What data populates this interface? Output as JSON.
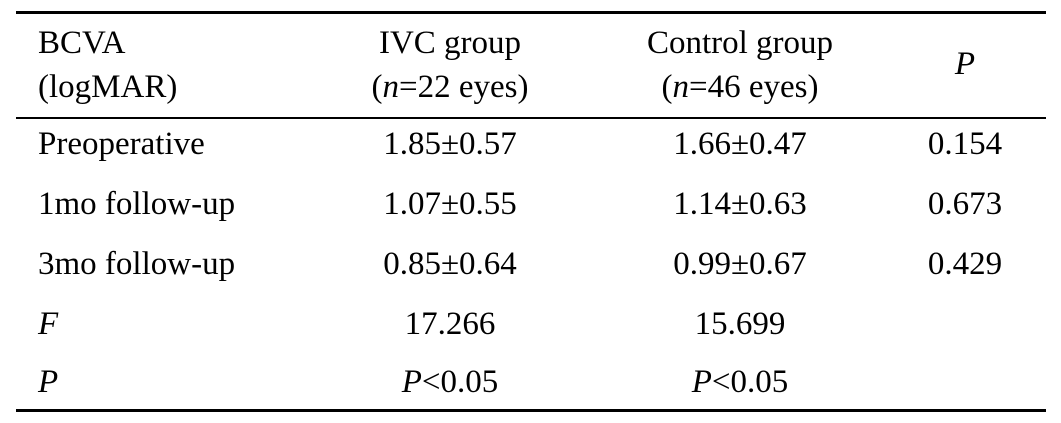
{
  "table": {
    "header": {
      "col0_line1": "BCVA",
      "col0_line2": "(logMAR)",
      "col1_line1": "IVC group",
      "col1_line2_italic": "n",
      "col1_line2_rest": "=22 eyes)",
      "col1_line2_open": "(",
      "col2_line1": "Control group",
      "col2_line2_open": "(",
      "col2_line2_italic": "n",
      "col2_line2_rest": "=46 eyes)",
      "col3": "P"
    },
    "rows": [
      {
        "label": "Preoperative",
        "ivc": "1.85±0.57",
        "control": "1.66±0.47",
        "p": "0.154"
      },
      {
        "label": "1mo follow-up",
        "ivc": "1.07±0.55",
        "control": "1.14±0.63",
        "p": "0.673"
      },
      {
        "label": "3mo follow-up",
        "ivc": "0.85±0.64",
        "control": "0.99±0.67",
        "p": "0.429"
      },
      {
        "label": "F",
        "ivc": "17.266",
        "control": "15.699",
        "p": ""
      }
    ],
    "last_row": {
      "label": "P",
      "ivc_italic": "P",
      "ivc_rest": "<0.05",
      "control_italic": "P",
      "control_rest": "<0.05"
    }
  }
}
